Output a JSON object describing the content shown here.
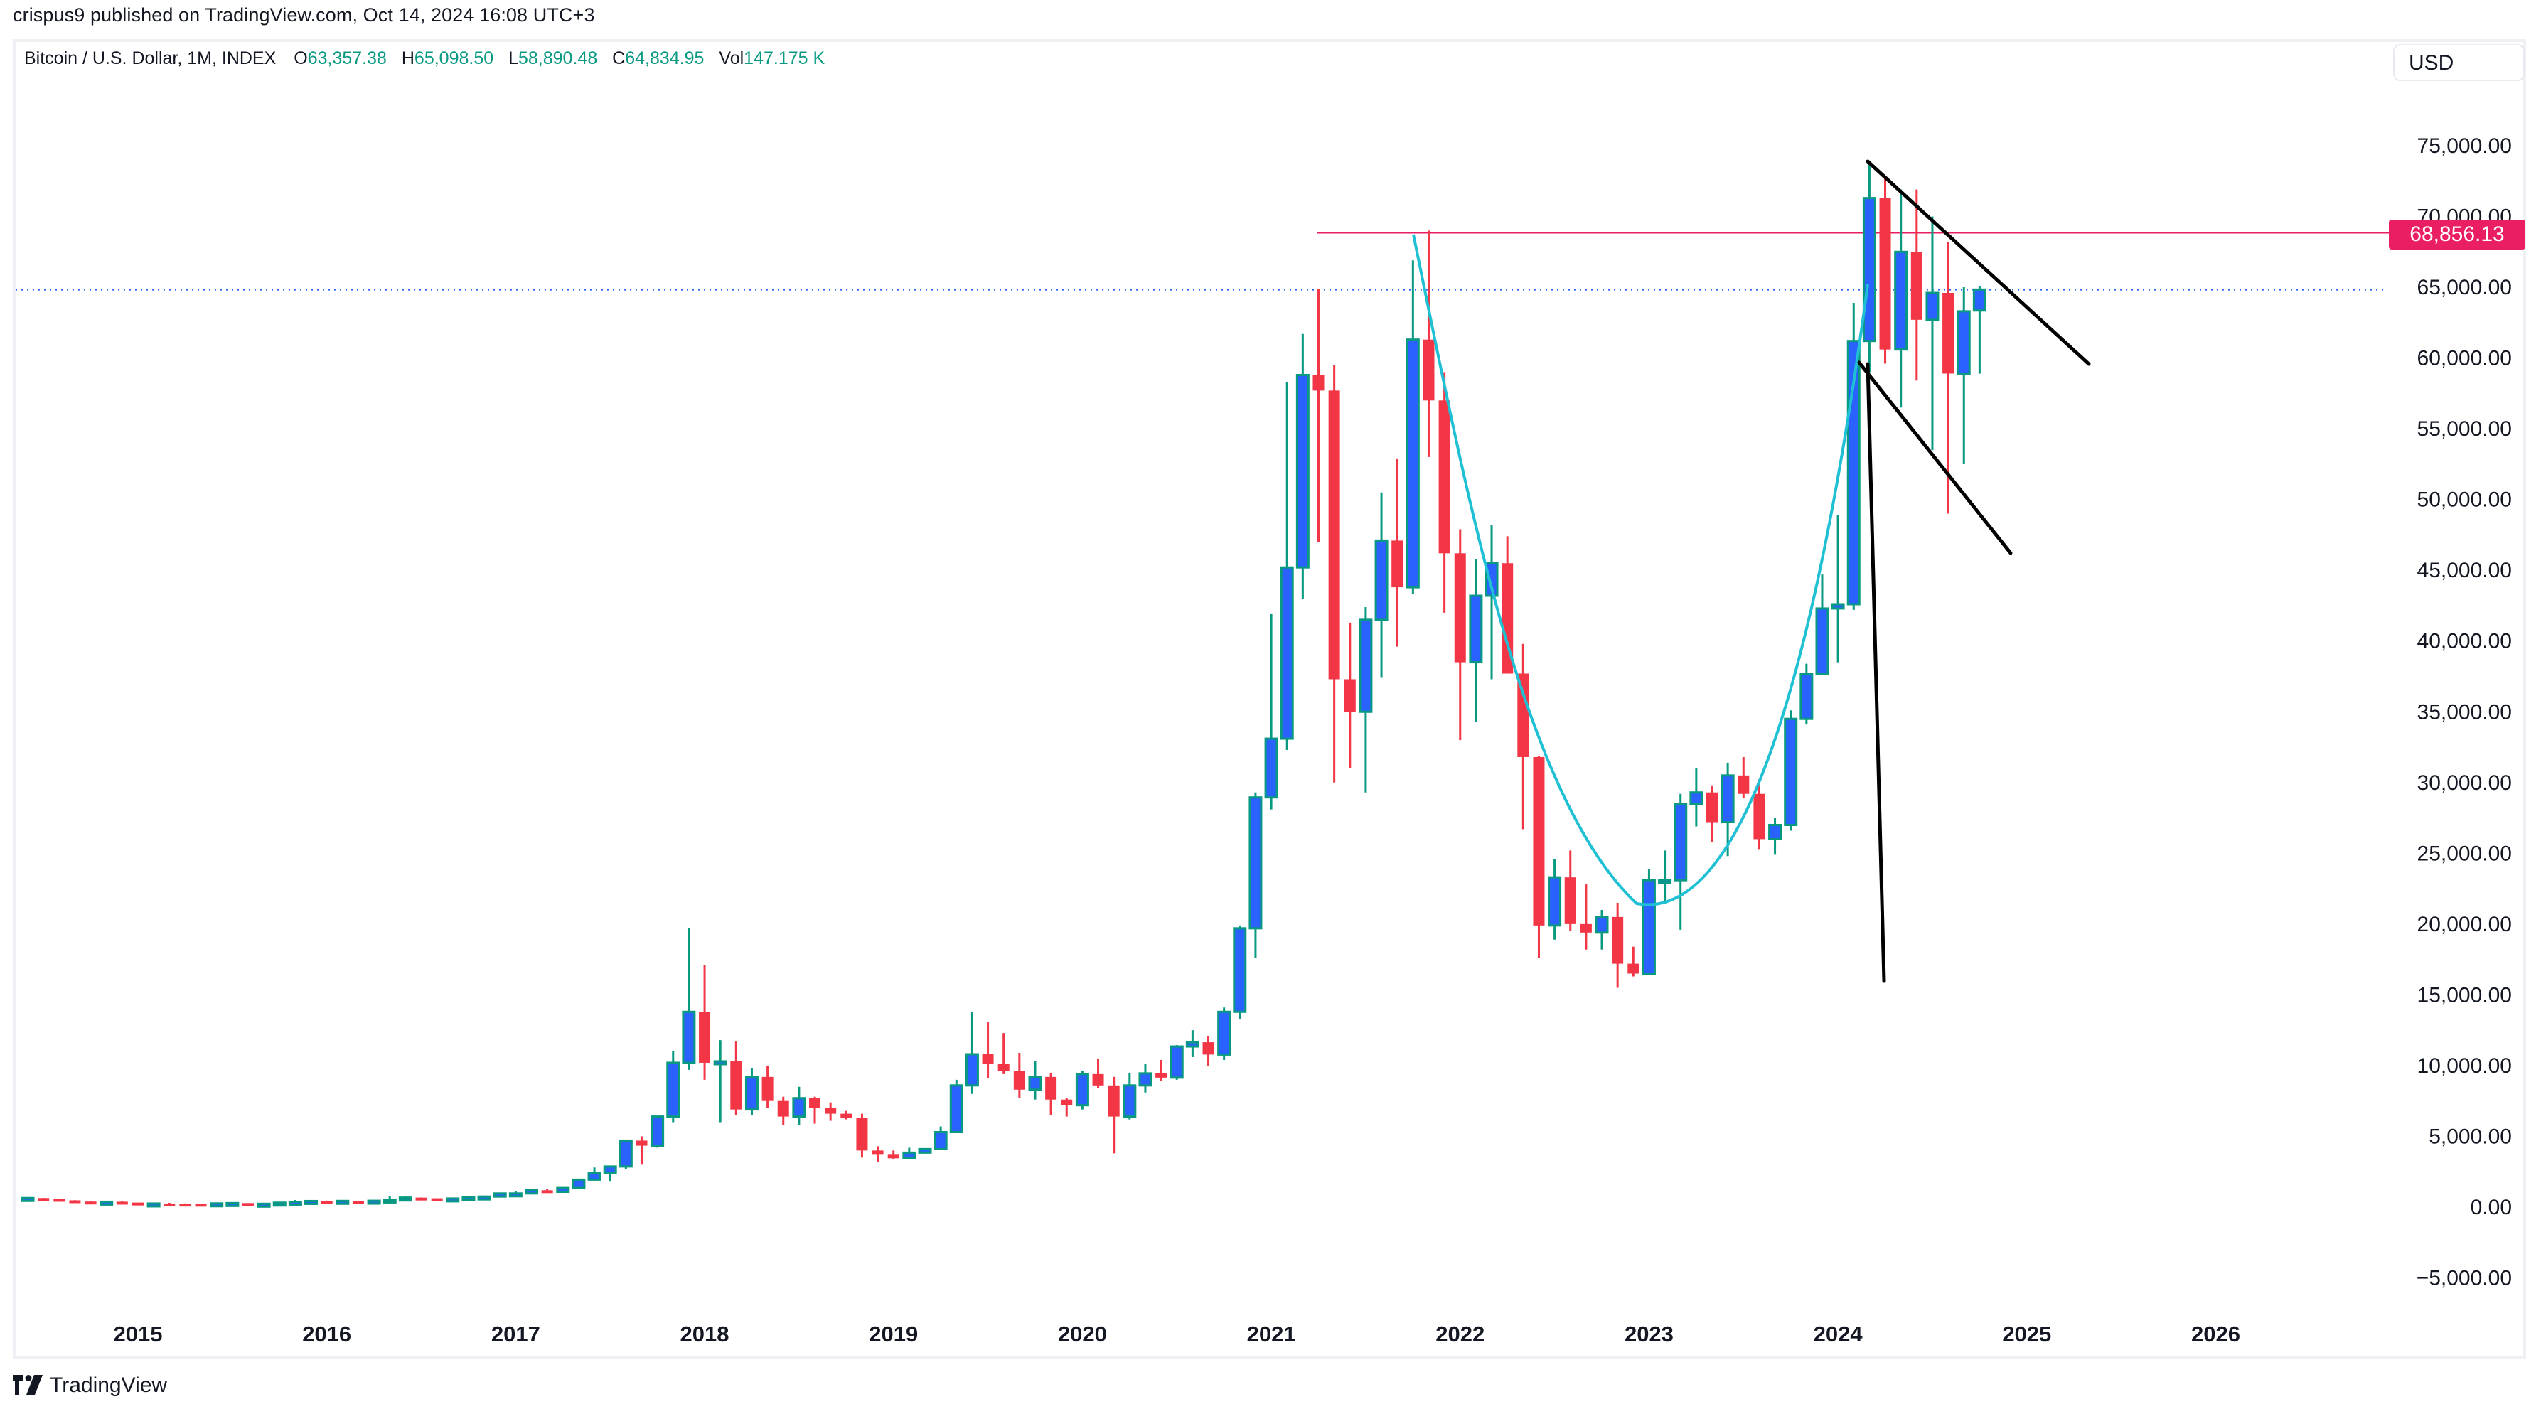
{
  "header": {
    "publish_line": "crispus9 published on TradingView.com, Oct 14, 2024 16:08 UTC+3"
  },
  "legend": {
    "symbol": "Bitcoin / U.S. Dollar, 1M, INDEX",
    "open_label": "O",
    "open": "63,357.38",
    "high_label": "H",
    "high": "65,098.50",
    "low_label": "L",
    "low": "58,890.48",
    "close_label": "C",
    "close": "64,834.95",
    "vol_label": "Vol",
    "vol": "147.175 K"
  },
  "currency_button": "USD",
  "price_tag": "68,856.13",
  "footer": {
    "brand": "TradingView"
  },
  "colors": {
    "up_body": "#2962FF",
    "up_border": "#089981",
    "down": "#F23645",
    "resistance": "#E91E63",
    "last_price": "#2962FF",
    "curve": "#1FC0D4",
    "trendline": "#000000"
  },
  "chart_data": {
    "type": "candlestick",
    "title": "Bitcoin / U.S. Dollar, 1M, INDEX",
    "xlabel": "",
    "ylabel": "USD",
    "ylim": [
      -7000,
      82000
    ],
    "y_ticks": [
      "75,000.00",
      "70,000.00",
      "65,000.00",
      "60,000.00",
      "55,000.00",
      "50,000.00",
      "45,000.00",
      "40,000.00",
      "35,000.00",
      "30,000.00",
      "25,000.00",
      "20,000.00",
      "15,000.00",
      "10,000.00",
      "5,000.00",
      "0.00",
      "−5,000.00"
    ],
    "y_tick_values": [
      75000,
      70000,
      65000,
      60000,
      55000,
      50000,
      45000,
      40000,
      35000,
      30000,
      25000,
      20000,
      15000,
      10000,
      5000,
      0,
      -5000
    ],
    "x_ticks": [
      "2015",
      "2016",
      "2017",
      "2018",
      "2019",
      "2020",
      "2021",
      "2022",
      "2023",
      "2024",
      "2025",
      "2026"
    ],
    "grid": false,
    "start_month": "2014-06",
    "ohlc": [
      [
        630,
        680,
        520,
        640
      ],
      [
        640,
        650,
        560,
        580
      ],
      [
        580,
        600,
        460,
        480
      ],
      [
        480,
        490,
        380,
        390
      ],
      [
        390,
        420,
        280,
        340
      ],
      [
        340,
        410,
        340,
        380
      ],
      [
        380,
        400,
        300,
        320
      ],
      [
        320,
        320,
        160,
        217
      ],
      [
        217,
        265,
        200,
        254
      ],
      [
        254,
        300,
        240,
        244
      ],
      [
        244,
        260,
        210,
        236
      ],
      [
        236,
        245,
        220,
        230
      ],
      [
        230,
        265,
        220,
        263
      ],
      [
        263,
        315,
        255,
        284
      ],
      [
        284,
        285,
        200,
        230
      ],
      [
        230,
        250,
        220,
        236
      ],
      [
        236,
        330,
        232,
        313
      ],
      [
        313,
        500,
        300,
        378
      ],
      [
        378,
        465,
        350,
        430
      ],
      [
        430,
        460,
        350,
        369
      ],
      [
        369,
        445,
        365,
        437
      ],
      [
        437,
        440,
        370,
        416
      ],
      [
        416,
        470,
        410,
        448
      ],
      [
        448,
        780,
        450,
        530
      ],
      [
        530,
        770,
        520,
        670
      ],
      [
        670,
        680,
        480,
        624
      ],
      [
        624,
        630,
        530,
        574
      ],
      [
        574,
        640,
        565,
        608
      ],
      [
        608,
        760,
        600,
        700
      ],
      [
        700,
        780,
        700,
        745
      ],
      [
        745,
        980,
        740,
        965
      ],
      [
        965,
        1150,
        750,
        965
      ],
      [
        965,
        1200,
        900,
        1190
      ],
      [
        1190,
        1300,
        1050,
        1080
      ],
      [
        1080,
        1400,
        1080,
        1350
      ],
      [
        1350,
        2000,
        1320,
        1940
      ],
      [
        1940,
        2800,
        1900,
        2420
      ],
      [
        2420,
        2900,
        1850,
        2870
      ],
      [
        2870,
        4700,
        2700,
        4700
      ],
      [
        4700,
        5000,
        3000,
        4340
      ],
      [
        4340,
        6400,
        4200,
        6400
      ],
      [
        6400,
        11000,
        6000,
        10200
      ],
      [
        10200,
        19700,
        9700,
        13800
      ],
      [
        13800,
        17100,
        9000,
        10200
      ],
      [
        10200,
        11800,
        6000,
        10300
      ],
      [
        10300,
        11700,
        6500,
        6900
      ],
      [
        6900,
        9800,
        6500,
        9200
      ],
      [
        9200,
        10000,
        7000,
        7500
      ],
      [
        7500,
        7800,
        5800,
        6400
      ],
      [
        6400,
        8500,
        5800,
        7700
      ],
      [
        7700,
        7800,
        5900,
        7000
      ],
      [
        7000,
        7400,
        6100,
        6600
      ],
      [
        6600,
        6800,
        6200,
        6300
      ],
      [
        6300,
        6600,
        3500,
        4000
      ],
      [
        4000,
        4300,
        3200,
        3700
      ],
      [
        3700,
        4000,
        3400,
        3450
      ],
      [
        3450,
        4200,
        3400,
        3850
      ],
      [
        3850,
        4100,
        3800,
        4100
      ],
      [
        4100,
        5700,
        4100,
        5300
      ],
      [
        5300,
        9000,
        5300,
        8600
      ],
      [
        8600,
        13800,
        8000,
        10800
      ],
      [
        10800,
        13100,
        9100,
        10100
      ],
      [
        10100,
        12300,
        9400,
        9600
      ],
      [
        9600,
        10900,
        7700,
        8300
      ],
      [
        8300,
        10300,
        7600,
        9200
      ],
      [
        9200,
        9500,
        6500,
        7600
      ],
      [
        7600,
        7700,
        6400,
        7200
      ],
      [
        7200,
        9600,
        6900,
        9400
      ],
      [
        9400,
        10500,
        8400,
        8600
      ],
      [
        8600,
        9200,
        3800,
        6400
      ],
      [
        6400,
        9500,
        6200,
        8600
      ],
      [
        8600,
        10100,
        8100,
        9450
      ],
      [
        9450,
        10400,
        8900,
        9150
      ],
      [
        9150,
        11450,
        9000,
        11350
      ],
      [
        11350,
        12500,
        10600,
        11650
      ],
      [
        11650,
        12100,
        10000,
        10780
      ],
      [
        10780,
        14100,
        10400,
        13800
      ],
      [
        13800,
        19900,
        13300,
        19700
      ],
      [
        19700,
        29300,
        17600,
        28950
      ],
      [
        28950,
        41950,
        28100,
        33100
      ],
      [
        33100,
        58300,
        32300,
        45200
      ],
      [
        45200,
        61700,
        43000,
        58800
      ],
      [
        58800,
        64900,
        47000,
        57700
      ],
      [
        57700,
        59500,
        30000,
        37300
      ],
      [
        37300,
        41300,
        31000,
        35000
      ],
      [
        35000,
        42400,
        29300,
        41500
      ],
      [
        41500,
        50500,
        37400,
        47100
      ],
      [
        47100,
        52900,
        39600,
        43800
      ],
      [
        43800,
        66900,
        43300,
        61300
      ],
      [
        61300,
        69000,
        53000,
        57000
      ],
      [
        57000,
        59000,
        42000,
        46200
      ],
      [
        46200,
        47900,
        33000,
        38500
      ],
      [
        38500,
        45800,
        34300,
        43200
      ],
      [
        43200,
        48200,
        37300,
        45500
      ],
      [
        45500,
        47400,
        37700,
        37700
      ],
      [
        37700,
        39800,
        26700,
        31800
      ],
      [
        31800,
        31900,
        17600,
        19900
      ],
      [
        19900,
        24600,
        18900,
        23300
      ],
      [
        23300,
        25200,
        19500,
        20000
      ],
      [
        20000,
        22800,
        18200,
        19400
      ],
      [
        19400,
        21000,
        18200,
        20500
      ],
      [
        20500,
        21500,
        15500,
        17200
      ],
      [
        17200,
        18400,
        16300,
        16500
      ],
      [
        16500,
        23900,
        16500,
        23100
      ],
      [
        23100,
        25200,
        21400,
        23100
      ],
      [
        23100,
        29200,
        19600,
        28500
      ],
      [
        28500,
        31000,
        26900,
        29300
      ],
      [
        29300,
        29800,
        25800,
        27200
      ],
      [
        27200,
        31400,
        24800,
        30500
      ],
      [
        30500,
        31800,
        28900,
        29200
      ],
      [
        29200,
        30200,
        25300,
        26000
      ],
      [
        26000,
        27500,
        24900,
        27000
      ],
      [
        27000,
        35100,
        26600,
        34500
      ],
      [
        34500,
        38400,
        34100,
        37700
      ],
      [
        37700,
        44700,
        37600,
        42300
      ],
      [
        42300,
        48900,
        38500,
        42600
      ],
      [
        42600,
        63900,
        42200,
        61200
      ],
      [
        61200,
        73800,
        59000,
        71300
      ],
      [
        71300,
        72700,
        59600,
        60600
      ],
      [
        60600,
        71900,
        56500,
        67500
      ],
      [
        67500,
        71900,
        58400,
        62700
      ],
      [
        62700,
        70000,
        53500,
        64600
      ],
      [
        64600,
        68200,
        49000,
        58900
      ],
      [
        58900,
        65000,
        52500,
        63300
      ],
      [
        63357.38,
        65098.5,
        58890.48,
        64834.95
      ]
    ],
    "annotations": {
      "resistance_level": 68856.13,
      "last_price": 64834.95,
      "curve": "cup shape from 2021 high to 2024 high, bottom near 21,000 in late 2022",
      "trendlines": "descending bull-flag channel from Mar 2024 high plus flag pole"
    }
  }
}
